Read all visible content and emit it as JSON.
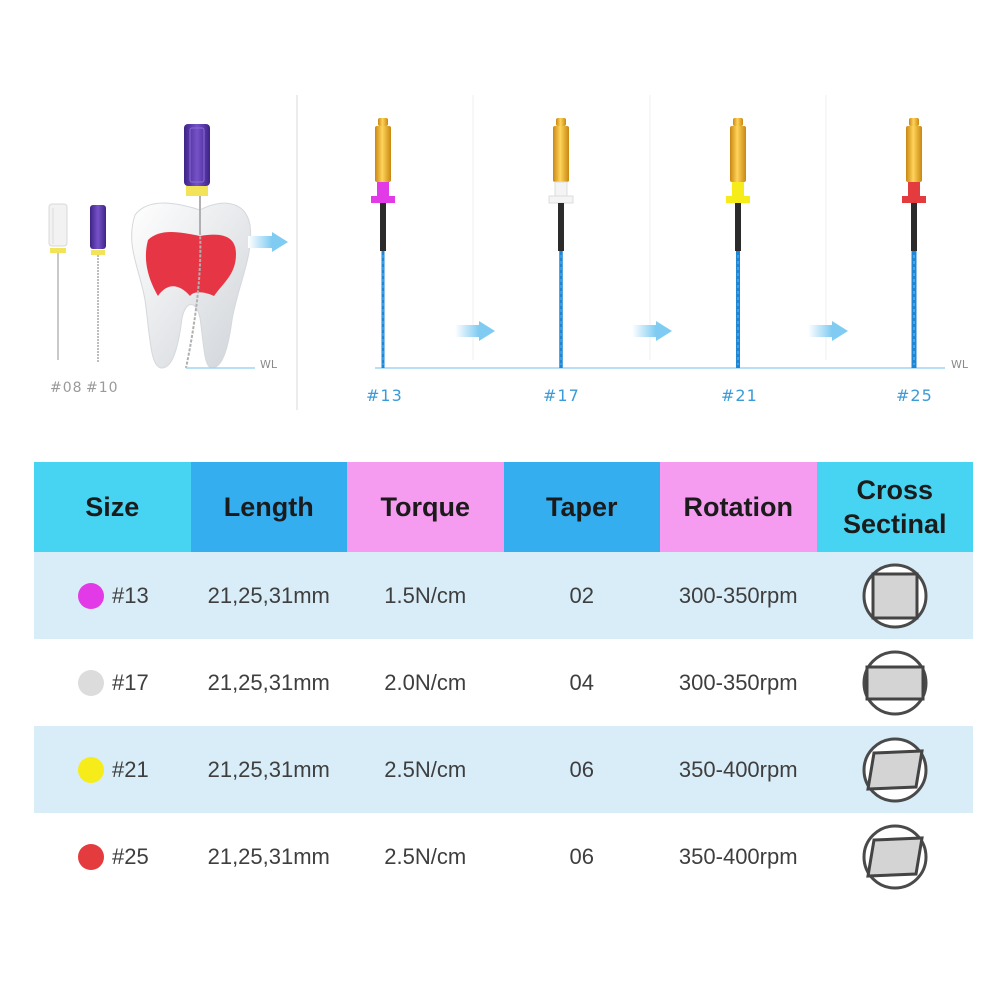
{
  "illustration": {
    "hand_file_labels": [
      "#08",
      "#10"
    ],
    "rotary_file_labels": [
      "#13",
      "#17",
      "#21",
      "#25"
    ],
    "working_length_label": "WL"
  },
  "table": {
    "headers": [
      {
        "label": "Size",
        "color": "#47d4f3"
      },
      {
        "label": "Length",
        "color": "#35aef0"
      },
      {
        "label": "Torque",
        "color": "#f59bf0"
      },
      {
        "label": "Taper",
        "color": "#35aef0"
      },
      {
        "label": "Rotation",
        "color": "#f59bf0"
      },
      {
        "label": "Cross Sectinal",
        "color": "#47d4f3"
      }
    ],
    "rows": [
      {
        "size": "#13",
        "dot_color": "#e23ae6",
        "length": "21,25,31mm",
        "torque": "1.5N/cm",
        "taper": "02",
        "rotation": "300-350rpm",
        "cross_section": "square"
      },
      {
        "size": "#17",
        "dot_color": "#dcdcdc",
        "length": "21,25,31mm",
        "torque": "2.0N/cm",
        "taper": "04",
        "rotation": "300-350rpm",
        "cross_section": "rectangle"
      },
      {
        "size": "#21",
        "dot_color": "#f5ec1a",
        "length": "21,25,31mm",
        "torque": "2.5N/cm",
        "taper": "06",
        "rotation": "350-400rpm",
        "cross_section": "parallelogram"
      },
      {
        "size": "#25",
        "dot_color": "#e33b3e",
        "length": "21,25,31mm",
        "torque": "2.5N/cm",
        "taper": "06",
        "rotation": "350-400rpm",
        "cross_section": "parallelogram"
      }
    ]
  },
  "colors": {
    "row_shade": "#d9edf8",
    "file_shaft_blue": "#1f86d6",
    "handle_gold": "#e8a51c",
    "handle_purple": "#5b35a8",
    "pulp_red": "#e63646",
    "arrow_blue": "#8fd0f3"
  }
}
